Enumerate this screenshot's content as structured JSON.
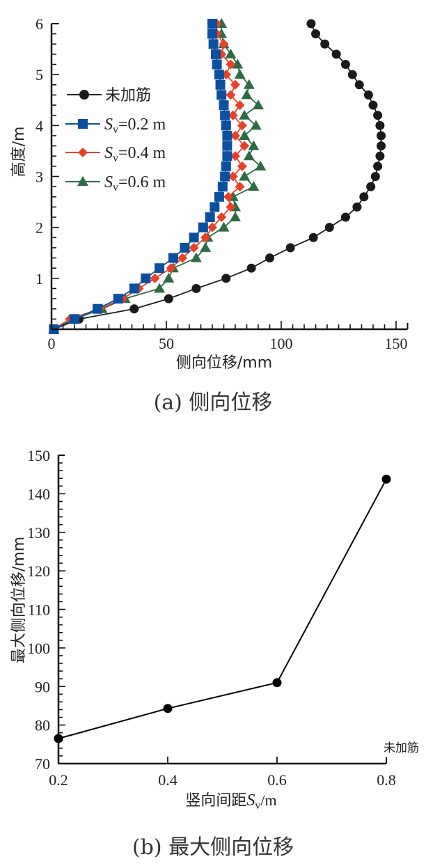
{
  "chart_data": [
    {
      "type": "line",
      "caption": "(a) 侧向位移",
      "xlabel": "侧向位移/mm",
      "ylabel": "高度/m",
      "xlim": [
        0,
        155
      ],
      "ylim": [
        0,
        6
      ],
      "xticks": [
        "0",
        "50",
        "100",
        "150"
      ],
      "yticks": [
        "1",
        "2",
        "3",
        "4",
        "5",
        "6"
      ],
      "legend_position": "upper-left",
      "grid": false,
      "y": [
        0,
        0.2,
        0.4,
        0.6,
        0.8,
        1.0,
        1.2,
        1.4,
        1.6,
        1.8,
        2.0,
        2.2,
        2.4,
        2.6,
        2.8,
        3.0,
        3.2,
        3.4,
        3.6,
        3.8,
        4.0,
        4.2,
        4.4,
        4.6,
        4.8,
        5.0,
        5.2,
        5.4,
        5.6,
        5.8,
        6.0
      ],
      "series": [
        {
          "name": "未加筋",
          "marker": "circle",
          "color": "#1a1a1a",
          "x": [
            1,
            12,
            36,
            51,
            63,
            76,
            87,
            95,
            104,
            114,
            121,
            128,
            133,
            136,
            139,
            141,
            142,
            143,
            143.5,
            143.5,
            143,
            142,
            140,
            138,
            134,
            131,
            128,
            124,
            119,
            115,
            113
          ]
        },
        {
          "name_prefix": "S",
          "name_sub": "v",
          "name_suffix": "=0.2 m",
          "marker": "square",
          "color": "#0a4fa0",
          "x": [
            1,
            10,
            20,
            29,
            36,
            41,
            47,
            53,
            58,
            62,
            66,
            69,
            71,
            73,
            74.5,
            75.5,
            76,
            76.5,
            76.5,
            76.5,
            76,
            75.5,
            75,
            74,
            73.5,
            73,
            72,
            71.5,
            70.5,
            70,
            70
          ]
        },
        {
          "name_prefix": "S",
          "name_sub": "v",
          "name_suffix": "=0.4 m",
          "marker": "diamond",
          "color": "#e8412a",
          "x": [
            1,
            8,
            21,
            31,
            38,
            45,
            52,
            57,
            62,
            67,
            70,
            74,
            78,
            77,
            82,
            79,
            83,
            80,
            84,
            80,
            83,
            79,
            82,
            78,
            80,
            76,
            78,
            74,
            75,
            72,
            72
          ]
        },
        {
          "name_prefix": "S",
          "name_sub": "v",
          "name_suffix": "=0.6 m",
          "marker": "triangle",
          "color": "#2e6b45",
          "x": [
            1,
            10,
            22,
            32,
            47,
            51,
            53,
            63,
            67,
            68,
            75,
            80,
            80,
            79,
            88,
            84,
            91,
            86,
            88,
            84,
            89,
            84,
            90,
            85,
            86,
            82,
            81,
            78,
            75,
            74,
            74
          ]
        }
      ]
    },
    {
      "type": "line",
      "caption": "(b) 最大侧向位移",
      "xlabel_prefix": "竖向间距",
      "xlabel_var": "S",
      "xlabel_sub": "v",
      "xlabel_suffix": "/m",
      "ylabel": "最大侧向位移/mm",
      "xlim": [
        0.2,
        0.8
      ],
      "ylim": [
        70,
        150
      ],
      "xticks": [
        "0.2",
        "0.4",
        "0.6",
        "0.8"
      ],
      "yticks": [
        "70",
        "80",
        "90",
        "100",
        "110",
        "120",
        "130",
        "140",
        "150"
      ],
      "annotation": "未加筋",
      "grid": false,
      "x": [
        0.2,
        0.4,
        0.6,
        0.8
      ],
      "values": [
        76.5,
        84.3,
        91.0,
        143.8
      ],
      "color": "#000000"
    }
  ]
}
